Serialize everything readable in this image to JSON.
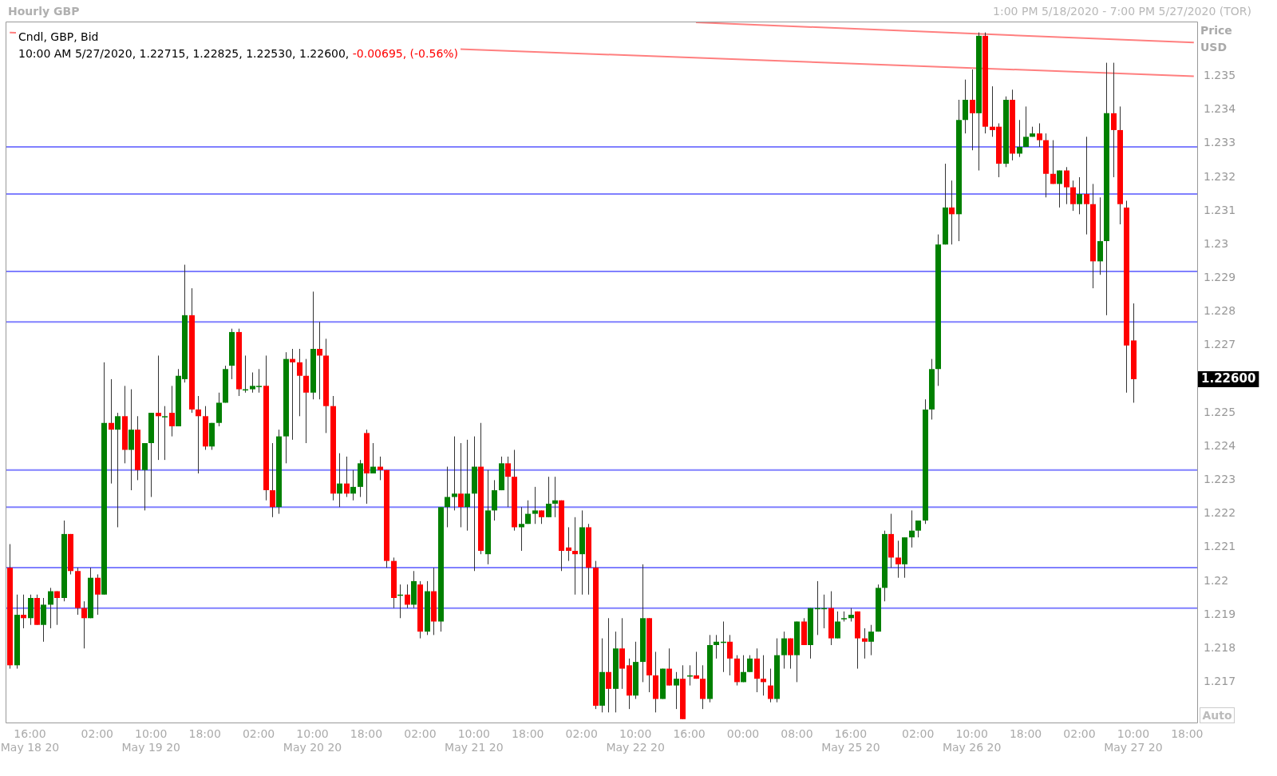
{
  "chart_data": {
    "type": "candlestick",
    "title": "Hourly GBP",
    "subtitle": "1:00 PM 5/18/2020 - 7:00 PM 5/27/2020 (TOR)",
    "ylabel": "Price USD",
    "categories": [
      null,
      null,
      null,
      "16:00\nMay 18 20",
      null,
      null,
      null,
      null,
      null,
      null,
      null,
      null,
      null,
      "02:00",
      null,
      null,
      null,
      null,
      null,
      null,
      null,
      "10:00\nMay 19 20",
      null,
      null,
      null,
      null,
      null,
      null,
      null,
      "18:00",
      null,
      null,
      null,
      null,
      null,
      null,
      null,
      "02:00",
      null,
      null,
      null,
      null,
      null,
      null,
      null,
      "10:00\nMay 20 20",
      null,
      null,
      null,
      null,
      null,
      null,
      null,
      "18:00",
      null,
      null,
      null,
      null,
      null,
      null,
      null,
      "02:00",
      null,
      null,
      null,
      null,
      null,
      null,
      null,
      "10:00\nMay 21 20",
      null,
      null,
      null,
      null,
      null,
      null,
      null,
      "18:00",
      null,
      null,
      null,
      null,
      null,
      null,
      null,
      "02:00",
      null,
      null,
      null,
      null,
      null,
      null,
      null,
      "10:00\nMay 22 20",
      null,
      null,
      null,
      null,
      null,
      null,
      null,
      "16:00",
      null,
      null,
      null,
      null,
      null,
      null,
      null,
      "00:00",
      null,
      null,
      null,
      null,
      null,
      null,
      null,
      "08:00",
      null,
      null,
      null,
      null,
      null,
      null,
      null,
      "16:00\nMay 25 20",
      null,
      null,
      null,
      null,
      null,
      null,
      null,
      null,
      null,
      "02:00",
      null,
      null,
      null,
      null,
      null,
      null,
      null,
      "10:00\nMay 26 20",
      null,
      null,
      null,
      null,
      null,
      null,
      null,
      "18:00",
      null,
      null,
      null,
      null,
      null,
      null,
      null,
      "02:00",
      null,
      null,
      null,
      null,
      null,
      null,
      null,
      "10:00\nMay 27 20",
      null,
      null,
      null,
      null,
      null,
      null,
      null,
      "18:00",
      null
    ],
    "ohlc": [
      [
        1.2204,
        1.2211,
        1.2174,
        1.2175
      ],
      [
        1.2175,
        1.2196,
        1.2174,
        1.219
      ],
      [
        1.219,
        1.2196,
        1.2186,
        1.2189
      ],
      [
        1.2189,
        1.2196,
        1.2187,
        1.2195
      ],
      [
        1.2195,
        1.2196,
        1.2187,
        1.2187
      ],
      [
        1.2187,
        1.2195,
        1.2182,
        1.2193
      ],
      [
        1.2193,
        1.2198,
        1.2186,
        1.2197
      ],
      [
        1.2197,
        1.2197,
        1.2187,
        1.2195
      ],
      [
        1.2195,
        1.2218,
        1.2194,
        1.2214
      ],
      [
        1.2214,
        1.2214,
        1.2202,
        1.2203
      ],
      [
        1.2203,
        1.2204,
        1.219,
        1.2192
      ],
      [
        1.2192,
        1.2194,
        1.218,
        1.2189
      ],
      [
        1.2189,
        1.2204,
        1.2189,
        1.2201
      ],
      [
        1.2201,
        1.2202,
        1.219,
        1.2196
      ],
      [
        1.2196,
        1.2265,
        1.2196,
        1.2247
      ],
      [
        1.2247,
        1.226,
        1.2229,
        1.2245
      ],
      [
        1.2245,
        1.225,
        1.2216,
        1.2249
      ],
      [
        1.2249,
        1.2258,
        1.2235,
        1.2239
      ],
      [
        1.2239,
        1.2257,
        1.2227,
        1.2245
      ],
      [
        1.2245,
        1.2249,
        1.223,
        1.2233
      ],
      [
        1.2233,
        1.2241,
        1.2221,
        1.2241
      ],
      [
        1.2241,
        1.225,
        1.2225,
        1.225
      ],
      [
        1.225,
        1.2267,
        1.2236,
        1.2249
      ],
      [
        1.2249,
        1.2252,
        1.2236,
        1.2249
      ],
      [
        1.225,
        1.2258,
        1.2243,
        1.2246
      ],
      [
        1.2246,
        1.2263,
        1.2246,
        1.2261
      ],
      [
        1.226,
        1.2294,
        1.2259,
        1.2279
      ],
      [
        1.2279,
        1.2287,
        1.225,
        1.2251
      ],
      [
        1.2251,
        1.2255,
        1.2232,
        1.2249
      ],
      [
        1.2249,
        1.2252,
        1.2239,
        1.224
      ],
      [
        1.224,
        1.2247,
        1.2239,
        1.2247
      ],
      [
        1.2247,
        1.2256,
        1.2246,
        1.2253
      ],
      [
        1.2253,
        1.2264,
        1.2253,
        1.2263
      ],
      [
        1.2264,
        1.2275,
        1.226,
        1.2274
      ],
      [
        1.2274,
        1.2275,
        1.2255,
        1.2257
      ],
      [
        1.2257,
        1.2267,
        1.2256,
        1.2257
      ],
      [
        1.2257,
        1.2262,
        1.2256,
        1.2258
      ],
      [
        1.2258,
        1.2263,
        1.2256,
        1.2258
      ],
      [
        1.2258,
        1.2267,
        1.2224,
        1.2227
      ],
      [
        1.2227,
        1.2241,
        1.2219,
        1.2222
      ],
      [
        1.2222,
        1.2245,
        1.222,
        1.2243
      ],
      [
        1.2243,
        1.2268,
        1.2235,
        1.2266
      ],
      [
        1.2266,
        1.2269,
        1.2242,
        1.2265
      ],
      [
        1.2265,
        1.2269,
        1.2249,
        1.2261
      ],
      [
        1.2261,
        1.2266,
        1.2241,
        1.2256
      ],
      [
        1.2256,
        1.2286,
        1.2254,
        1.2269
      ],
      [
        1.2269,
        1.2277,
        1.2254,
        1.2267
      ],
      [
        1.2267,
        1.2272,
        1.2244,
        1.2252
      ],
      [
        1.2252,
        1.2255,
        1.2224,
        1.2226
      ],
      [
        1.2226,
        1.2238,
        1.2222,
        1.2229
      ],
      [
        1.2229,
        1.2237,
        1.2225,
        1.2226
      ],
      [
        1.2226,
        1.2233,
        1.2224,
        1.2228
      ],
      [
        1.2228,
        1.2236,
        1.2225,
        1.2235
      ],
      [
        1.2244,
        1.2245,
        1.2223,
        1.2232
      ],
      [
        1.2232,
        1.2241,
        1.2232,
        1.2234
      ],
      [
        1.2234,
        1.2237,
        1.223,
        1.2233
      ],
      [
        1.2233,
        1.2233,
        1.2204,
        1.2206
      ],
      [
        1.2206,
        1.2207,
        1.2192,
        1.2195
      ],
      [
        1.2196,
        1.2199,
        1.2189,
        1.2196
      ],
      [
        1.2196,
        1.2199,
        1.2192,
        1.2193
      ],
      [
        1.2193,
        1.2203,
        1.2192,
        1.22
      ],
      [
        1.2199,
        1.22,
        1.2183,
        1.2185
      ],
      [
        1.2185,
        1.22,
        1.2184,
        1.2197
      ],
      [
        1.2197,
        1.2204,
        1.2184,
        1.2188
      ],
      [
        1.2188,
        1.2222,
        1.2185,
        1.2222
      ],
      [
        1.2222,
        1.2234,
        1.2216,
        1.2225
      ],
      [
        1.2225,
        1.2243,
        1.2221,
        1.2226
      ],
      [
        1.2226,
        1.2241,
        1.2216,
        1.2222
      ],
      [
        1.2222,
        1.2242,
        1.2215,
        1.2226
      ],
      [
        1.2226,
        1.2243,
        1.2203,
        1.2234
      ],
      [
        1.2234,
        1.2247,
        1.2208,
        1.2209
      ],
      [
        1.2208,
        1.2233,
        1.2205,
        1.2221
      ],
      [
        1.2221,
        1.223,
        1.2218,
        1.2227
      ],
      [
        1.2227,
        1.2237,
        1.2227,
        1.2235
      ],
      [
        1.2235,
        1.2237,
        1.2222,
        1.2231
      ],
      [
        1.2231,
        1.2239,
        1.2215,
        1.2216
      ],
      [
        1.2216,
        1.2222,
        1.2209,
        1.2217
      ],
      [
        1.2217,
        1.2224,
        1.2217,
        1.222
      ],
      [
        1.222,
        1.2228,
        1.2217,
        1.2221
      ],
      [
        1.2221,
        1.2221,
        1.2217,
        1.2219
      ],
      [
        1.2219,
        1.2231,
        1.2219,
        1.2223
      ],
      [
        1.2223,
        1.2231,
        1.2219,
        1.2224
      ],
      [
        1.2224,
        1.2224,
        1.2203,
        1.2209
      ],
      [
        1.221,
        1.2216,
        1.2206,
        1.2209
      ],
      [
        1.2209,
        1.2219,
        1.2196,
        1.2208
      ],
      [
        1.2208,
        1.2221,
        1.2196,
        1.2216
      ],
      [
        1.2216,
        1.2217,
        1.2196,
        1.2204
      ],
      [
        1.2204,
        1.2206,
        1.2162,
        1.2163
      ],
      [
        1.2163,
        1.2183,
        1.2161,
        1.2173
      ],
      [
        1.2173,
        1.2189,
        1.2161,
        1.2168
      ],
      [
        1.2168,
        1.2185,
        1.2161,
        1.218
      ],
      [
        1.218,
        1.2189,
        1.2168,
        1.2174
      ],
      [
        1.2175,
        1.2177,
        1.2162,
        1.2166
      ],
      [
        1.2166,
        1.2182,
        1.2165,
        1.2176
      ],
      [
        1.2176,
        1.2205,
        1.217,
        1.2189
      ],
      [
        1.2189,
        1.2189,
        1.2167,
        1.2172
      ],
      [
        1.2172,
        1.2179,
        1.2161,
        1.2165
      ],
      [
        1.2165,
        1.2174,
        1.2165,
        1.2174
      ],
      [
        1.2174,
        1.218,
        1.2169,
        1.2169
      ],
      [
        1.2169,
        1.2173,
        1.2162,
        1.2171
      ],
      [
        1.2171,
        1.2175,
        1.2159,
        1.2159
      ],
      [
        1.2172,
        1.2175,
        1.2169,
        1.2172
      ],
      [
        1.2172,
        1.2179,
        1.2171,
        1.2171
      ],
      [
        1.2171,
        1.2175,
        1.2162,
        1.2165
      ],
      [
        1.2165,
        1.2184,
        1.2164,
        1.2181
      ],
      [
        1.2181,
        1.2184,
        1.2177,
        1.2182
      ],
      [
        1.2182,
        1.2188,
        1.2173,
        1.2182
      ],
      [
        1.2182,
        1.2184,
        1.2172,
        1.2177
      ],
      [
        1.2177,
        1.2178,
        1.2169,
        1.217
      ],
      [
        1.217,
        1.2178,
        1.217,
        1.2173
      ],
      [
        1.2173,
        1.2178,
        1.2173,
        1.2177
      ],
      [
        1.2177,
        1.218,
        1.2167,
        1.2171
      ],
      [
        1.2171,
        1.2178,
        1.2166,
        1.217
      ],
      [
        1.2169,
        1.2174,
        1.2164,
        1.2165
      ],
      [
        1.2165,
        1.2183,
        1.2164,
        1.2178
      ],
      [
        1.2178,
        1.2185,
        1.2174,
        1.2183
      ],
      [
        1.2183,
        1.2183,
        1.2174,
        1.2178
      ],
      [
        1.2178,
        1.2188,
        1.217,
        1.2188
      ],
      [
        1.2188,
        1.2189,
        1.2181,
        1.2181
      ],
      [
        1.2181,
        1.2192,
        1.2177,
        1.2192
      ],
      [
        1.2192,
        1.22,
        1.2184,
        1.2192
      ],
      [
        1.2192,
        1.2196,
        1.2186,
        1.2192
      ],
      [
        1.2192,
        1.2197,
        1.2181,
        1.2183
      ],
      [
        1.2183,
        1.2191,
        1.2183,
        1.2188
      ],
      [
        1.2189,
        1.2191,
        1.2188,
        1.2189
      ],
      [
        1.2189,
        1.2192,
        1.2188,
        1.219
      ],
      [
        1.2191,
        1.2191,
        1.2174,
        1.2183
      ],
      [
        1.2183,
        1.2186,
        1.2177,
        1.2182
      ],
      [
        1.2182,
        1.2187,
        1.2178,
        1.2185
      ],
      [
        1.2185,
        1.2199,
        1.2185,
        1.2198
      ],
      [
        1.2198,
        1.2215,
        1.2194,
        1.2214
      ],
      [
        1.2214,
        1.222,
        1.2204,
        1.2207
      ],
      [
        1.2207,
        1.2212,
        1.2201,
        1.2205
      ],
      [
        1.2205,
        1.2213,
        1.2201,
        1.2213
      ],
      [
        1.2213,
        1.2221,
        1.221,
        1.2215
      ],
      [
        1.2215,
        1.2218,
        1.2213,
        1.2218
      ],
      [
        1.2218,
        1.2254,
        1.2217,
        1.2251
      ],
      [
        1.2251,
        1.2266,
        1.2248,
        1.2263
      ],
      [
        1.2263,
        1.2303,
        1.2258,
        1.23
      ],
      [
        1.23,
        1.2324,
        1.23,
        1.2311
      ],
      [
        1.2311,
        1.2319,
        1.23,
        1.2309
      ],
      [
        1.2309,
        1.2343,
        1.2301,
        1.2337
      ],
      [
        1.2337,
        1.2349,
        1.2333,
        1.2343
      ],
      [
        1.2343,
        1.2352,
        1.2328,
        1.2339
      ],
      [
        1.2339,
        1.2363,
        1.2322,
        1.2362
      ],
      [
        1.2362,
        1.2363,
        1.2333,
        1.2335
      ],
      [
        1.2335,
        1.2347,
        1.2332,
        1.2334
      ],
      [
        1.2335,
        1.2336,
        1.232,
        1.2324
      ],
      [
        1.2324,
        1.2344,
        1.2323,
        1.2343
      ],
      [
        1.2343,
        1.2346,
        1.2325,
        1.2327
      ],
      [
        1.2327,
        1.2337,
        1.2326,
        1.2329
      ],
      [
        1.2329,
        1.2341,
        1.2329,
        1.2332
      ],
      [
        1.2332,
        1.2335,
        1.2332,
        1.2333
      ],
      [
        1.2333,
        1.2336,
        1.2329,
        1.2331
      ],
      [
        1.2331,
        1.2333,
        1.2314,
        1.2321
      ],
      [
        1.2321,
        1.2331,
        1.2318,
        1.2318
      ],
      [
        1.2318,
        1.2322,
        1.2311,
        1.2322
      ],
      [
        1.2322,
        1.2323,
        1.2312,
        1.2317
      ],
      [
        1.2317,
        1.2319,
        1.231,
        1.2312
      ],
      [
        1.2312,
        1.232,
        1.2309,
        1.2315
      ],
      [
        1.2315,
        1.2332,
        1.2303,
        1.2312
      ],
      [
        1.2312,
        1.2318,
        1.2287,
        1.2295
      ],
      [
        1.2295,
        1.2314,
        1.2291,
        1.2301
      ],
      [
        1.2301,
        1.2354,
        1.2279,
        1.2339
      ],
      [
        1.2339,
        1.2354,
        1.232,
        1.2334
      ],
      [
        1.2334,
        1.2341,
        1.2306,
        1.2312
      ],
      [
        1.2311,
        1.2313,
        1.2256,
        1.227
      ],
      [
        1.22715,
        1.22825,
        1.2253,
        1.226
      ],
      null,
      null,
      null,
      null,
      null,
      null,
      null,
      null,
      null
    ],
    "series": [
      {
        "type": "line",
        "color": "#ff7f7f",
        "values": [
          1.2363,
          null,
          null,
          null,
          null,
          null,
          null,
          null,
          null,
          null,
          null,
          null,
          null,
          null,
          null,
          null,
          null,
          null,
          null,
          null,
          null,
          null,
          null,
          null,
          null,
          null,
          null,
          null,
          null,
          null,
          null,
          null,
          null,
          null,
          null,
          null,
          null,
          null,
          null,
          null,
          null,
          null,
          null,
          null,
          null,
          null,
          null,
          null,
          null,
          null,
          null,
          null,
          null,
          null,
          null,
          null,
          null,
          null,
          null,
          null,
          null,
          null,
          null,
          null,
          null,
          null,
          null,
          null,
          null,
          null,
          null,
          null,
          null,
          null,
          null,
          null,
          null,
          null,
          null,
          null,
          null,
          null,
          null,
          null,
          null,
          null,
          null,
          null,
          null,
          null,
          null,
          null,
          null,
          null,
          null,
          null,
          null,
          null,
          null,
          null,
          null,
          null,
          null,
          null,
          null,
          null,
          null,
          null,
          null,
          null,
          null,
          null,
          null,
          null,
          null,
          null,
          null,
          null,
          null,
          null,
          null,
          null,
          null,
          null,
          null,
          null,
          null,
          null,
          null,
          null,
          null,
          null,
          null,
          null,
          null,
          null,
          null,
          null,
          null,
          null,
          null,
          null,
          null,
          null,
          null,
          null,
          null,
          null,
          null,
          null,
          null,
          null,
          null,
          null,
          null,
          null,
          null,
          null,
          null,
          null,
          null,
          null,
          null,
          null,
          null,
          null,
          null,
          null,
          null,
          null,
          null,
          null,
          null,
          null,
          null,
          null,
          1.235
        ]
      },
      {
        "type": "line",
        "color": "#ff7f7f",
        "values": [
          null,
          null,
          null,
          null,
          null,
          null,
          null,
          null,
          null,
          null,
          null,
          null,
          null,
          null,
          null,
          null,
          null,
          null,
          null,
          null,
          null,
          null,
          null,
          null,
          null,
          null,
          null,
          null,
          null,
          null,
          null,
          null,
          null,
          null,
          null,
          null,
          null,
          null,
          null,
          null,
          null,
          null,
          null,
          null,
          null,
          null,
          null,
          null,
          null,
          null,
          null,
          null,
          null,
          null,
          null,
          null,
          null,
          null,
          null,
          null,
          null,
          null,
          null,
          null,
          null,
          null,
          null,
          null,
          null,
          null,
          null,
          null,
          null,
          null,
          null,
          null,
          null,
          null,
          null,
          null,
          null,
          null,
          null,
          null,
          null,
          null,
          null,
          null,
          null,
          null,
          null,
          null,
          null,
          null,
          null,
          null,
          null,
          null,
          null,
          null,
          null,
          null,
          1.2366,
          null,
          null,
          null,
          null,
          null,
          null,
          null,
          null,
          null,
          null,
          null,
          null,
          null,
          null,
          null,
          null,
          null,
          null,
          null,
          null,
          null,
          null,
          null,
          null,
          null,
          null,
          null,
          null,
          null,
          null,
          null,
          null,
          null,
          null,
          null,
          null,
          null,
          null,
          null,
          null,
          null,
          null,
          null,
          null,
          null,
          null,
          null,
          null,
          null,
          null,
          null,
          null,
          null,
          null,
          null,
          null,
          null,
          null,
          null,
          null,
          null,
          null,
          null,
          null,
          null,
          null,
          null,
          null,
          null,
          null,
          null,
          null,
          null,
          1.236
        ]
      }
    ],
    "ylim": [
      1.2158,
      1.2366
    ],
    "yticks": [
      1.217,
      1.218,
      1.219,
      1.22,
      1.221,
      1.222,
      1.223,
      1.224,
      1.225,
      1.227,
      1.228,
      1.229,
      1.23,
      1.231,
      1.232,
      1.233,
      1.234,
      1.235
    ],
    "ref_lines": [
      {
        "axis": "y",
        "value": 1.2329,
        "color": "#8080ff"
      },
      {
        "axis": "y",
        "value": 1.2315,
        "color": "#8080ff"
      },
      {
        "axis": "y",
        "value": 1.2292,
        "color": "#8080ff"
      },
      {
        "axis": "y",
        "value": 1.2277,
        "color": "#8080ff"
      },
      {
        "axis": "y",
        "value": 1.2233,
        "color": "#8080ff"
      },
      {
        "axis": "y",
        "value": 1.2222,
        "color": "#8080ff"
      },
      {
        "axis": "y",
        "value": 1.2204,
        "color": "#8080ff"
      },
      {
        "axis": "y",
        "value": 1.2192,
        "color": "#8080ff"
      }
    ],
    "annotations": [
      "Cndl, GBP, Bid",
      "10:00 AM 5/27/2020, 1.22715, 1.22825, 1.22530, 1.22600,",
      "-0.00695, (-0.56%)",
      "1.22600",
      "Auto"
    ],
    "legend": false
  }
}
